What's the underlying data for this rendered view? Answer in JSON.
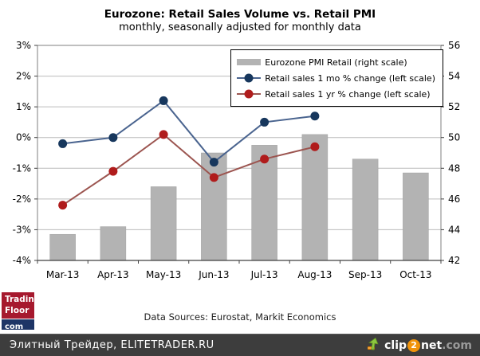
{
  "header": {
    "title": "Eurozone: Retail Sales Volume vs. Retail PMI",
    "subtitle": "monthly, seasonally adjusted for monthly data"
  },
  "legend": {
    "items": [
      {
        "label": "Eurozone PMI Retail (right scale)"
      },
      {
        "label": "Retail sales 1 mo % change (left scale)"
      },
      {
        "label": "Retail sales 1 yr % change (left scale)"
      }
    ]
  },
  "chart_data": {
    "type": "combo",
    "title": "Eurozone: Retail Sales Volume vs. Retail PMI",
    "subtitle": "monthly, seasonally adjusted for monthly data",
    "categories": [
      "Mar-13",
      "Apr-13",
      "May-13",
      "Jun-13",
      "Jul-13",
      "Aug-13",
      "Sep-13",
      "Oct-13"
    ],
    "series": [
      {
        "name": "Eurozone PMI Retail",
        "type": "bar",
        "axis": "right",
        "values": [
          43.7,
          44.2,
          46.8,
          49.0,
          49.5,
          50.2,
          48.6,
          47.7
        ],
        "color": {
          "fill": "#b3b3b3",
          "stroke": "#a0a0a0"
        }
      },
      {
        "name": "Retail sales 1 mo % change",
        "type": "line",
        "axis": "left",
        "values": [
          -0.2,
          0.0,
          1.2,
          -0.8,
          0.5,
          0.7,
          null,
          null
        ],
        "color": {
          "line": "#4a648f",
          "marker": "#17375d"
        }
      },
      {
        "name": "Retail sales 1 yr % change",
        "type": "line",
        "axis": "left",
        "values": [
          -2.2,
          -1.1,
          0.1,
          -1.3,
          -0.7,
          -0.3,
          null,
          null
        ],
        "color": {
          "line": "#9c5550",
          "marker": "#b01c1c"
        }
      }
    ],
    "left_axis": {
      "min": -4,
      "max": 3,
      "step": 1,
      "ticks": [
        "3%",
        "2%",
        "1%",
        "0%",
        "-1%",
        "-2%",
        "-3%",
        "-4%"
      ]
    },
    "right_axis": {
      "min": 42,
      "max": 56,
      "step": 2,
      "ticks": [
        "56",
        "54",
        "52",
        "50",
        "48",
        "46",
        "44",
        "42"
      ]
    },
    "grid": true,
    "legend_position": "top-right",
    "source_note": "Data Sources: Eurostat, Markit Economics"
  },
  "footer": {
    "logo": {
      "top": "Trading",
      "mid": "Floor",
      "bottom": "com"
    }
  },
  "bottom_bar": {
    "site_text": "Элитный Трейдер, ELITETRADER.RU",
    "clip2net": {
      "clip": "clip",
      "two": "2",
      "net": "net",
      "dotcom": ".com"
    }
  },
  "colors": {
    "grid": "#bcbcbc",
    "plot_border": "#7f7f7f",
    "axis": "#404040",
    "tick": "#404040",
    "logo_red": "#a6192e",
    "logo_navy": "#1e3566",
    "bottombar_bg": "#3d3d3d",
    "clip2net_orange": "#f0930a"
  }
}
